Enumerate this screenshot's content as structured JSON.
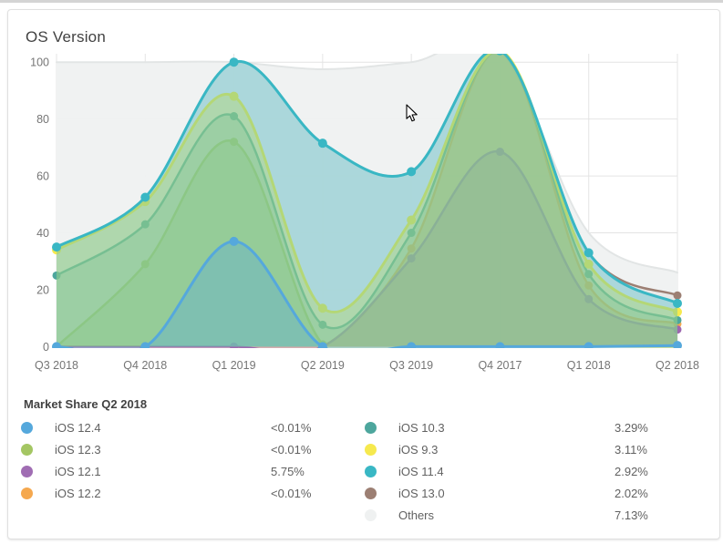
{
  "card": {
    "title": "OS Version"
  },
  "chart_data": {
    "type": "area",
    "title": "OS Version",
    "categories": [
      "Q3 2018",
      "Q4 2018",
      "Q1 2019",
      "Q2 2019",
      "Q3 2019",
      "Q4 2017",
      "Q1 2018",
      "Q2 2018"
    ],
    "xlabel": "",
    "ylabel": "",
    "ylim": [
      0,
      100
    ],
    "yticks": [
      0,
      20,
      40,
      60,
      80,
      100
    ],
    "grid": true,
    "legend_position": "bottom",
    "note": "overlapping smoothed area series, values above 100 are clipped at plot top",
    "series": [
      {
        "name": "Others",
        "color": "#EFF1F1",
        "stroke": "#E2E5E5",
        "line_width": 2,
        "fill_opacity": 0.95,
        "marker": false,
        "values": [
          100,
          100,
          100,
          97.5,
          100,
          104,
          40,
          26
        ]
      },
      {
        "name": "iOS 13.0",
        "color": "#9C7F73",
        "stroke": "#9C7F73",
        "line_width": 2.5,
        "fill_opacity": 0.08,
        "marker": true,
        "values": [
          35,
          52.5,
          100,
          71.5,
          61.5,
          104,
          33,
          18
        ]
      },
      {
        "name": "iOS 12.3",
        "color": "#A4C663",
        "stroke": "#A4C663",
        "line_width": 2.5,
        "fill_opacity": 0.4,
        "marker": true,
        "values": [
          0,
          29,
          72,
          0.8,
          0,
          0,
          0,
          0
        ]
      },
      {
        "name": "iOS 12.2",
        "color": "#F5A84E",
        "stroke": "#F5A84E",
        "line_width": 2.5,
        "fill_opacity": 0.45,
        "marker": true,
        "values": [
          0,
          0,
          0,
          0,
          34.5,
          104,
          21.5,
          8
        ]
      },
      {
        "name": "iOS 12.1",
        "color": "#A06DB3",
        "stroke": "#9D66AF",
        "line_width": 2.5,
        "fill_opacity": 0.4,
        "marker": true,
        "values": [
          0,
          0,
          0,
          0,
          31,
          68.5,
          16.7,
          6
        ]
      },
      {
        "name": "iOS 10.3",
        "color": "#4DA69D",
        "stroke": "#4DA69D",
        "line_width": 2.5,
        "fill_opacity": 0.35,
        "marker": true,
        "values": [
          25,
          43,
          81,
          7.7,
          40,
          104,
          25.5,
          9.3
        ]
      },
      {
        "name": "iOS 9.3",
        "color": "#F6E94E",
        "stroke": "#F6E94E",
        "line_width": 3,
        "fill_opacity": 0.45,
        "marker": true,
        "values": [
          34,
          51,
          88,
          13.5,
          44.5,
          104,
          29,
          12.2
        ]
      },
      {
        "name": "iOS 11.4",
        "color": "#39B7C4",
        "stroke": "#39B7C4",
        "line_width": 3,
        "fill_opacity": 0.35,
        "marker": true,
        "values": [
          35,
          52.5,
          100,
          71.5,
          61.5,
          104,
          33,
          15.2
        ]
      },
      {
        "name": "iOS 12.4",
        "color": "#55A8DC",
        "stroke": "#55A8DC",
        "line_width": 3,
        "fill_opacity": 0.35,
        "marker": true,
        "values": [
          0,
          0,
          37,
          0,
          0,
          0,
          0,
          0.4
        ]
      }
    ]
  },
  "legend": {
    "title": "Market Share Q2 2018",
    "columns": [
      [
        {
          "label": "iOS 12.4",
          "value": "<0.01%",
          "color": "#55A8DC"
        },
        {
          "label": "iOS 12.3",
          "value": "<0.01%",
          "color": "#A4C663"
        },
        {
          "label": "iOS 12.1",
          "value": "5.75%",
          "color": "#A06DB3"
        },
        {
          "label": "iOS 12.2",
          "value": "<0.01%",
          "color": "#F5A84E"
        }
      ],
      [
        {
          "label": "iOS 10.3",
          "value": "3.29%",
          "color": "#4DA69D"
        },
        {
          "label": "iOS 9.3",
          "value": "3.11%",
          "color": "#F6E94E"
        },
        {
          "label": "iOS 11.4",
          "value": "2.92%",
          "color": "#39B7C4"
        },
        {
          "label": "iOS 13.0",
          "value": "2.02%",
          "color": "#9C7F73"
        },
        {
          "label": "Others",
          "value": "7.13%",
          "color": "#EFF1F1"
        }
      ]
    ]
  },
  "style": {
    "grid_color": "#e4e4e4",
    "axis_text_color": "#757575",
    "title_color": "#424242"
  }
}
